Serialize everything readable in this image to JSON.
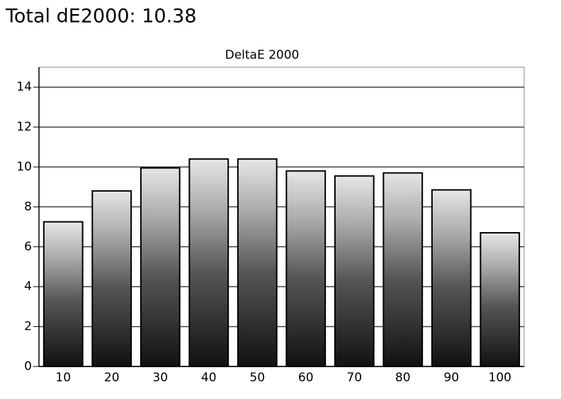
{
  "heading": "Total dE2000: 10.38",
  "chart_data": {
    "type": "bar",
    "title": "DeltaE 2000",
    "categories": [
      "10",
      "20",
      "30",
      "40",
      "50",
      "60",
      "70",
      "80",
      "90",
      "100"
    ],
    "values": [
      7.25,
      8.8,
      9.95,
      10.4,
      10.4,
      9.8,
      9.55,
      9.7,
      8.85,
      6.7
    ],
    "ylim": [
      0,
      15
    ],
    "yticks": [
      0,
      2,
      4,
      6,
      8,
      10,
      12,
      14
    ],
    "grid": true
  }
}
